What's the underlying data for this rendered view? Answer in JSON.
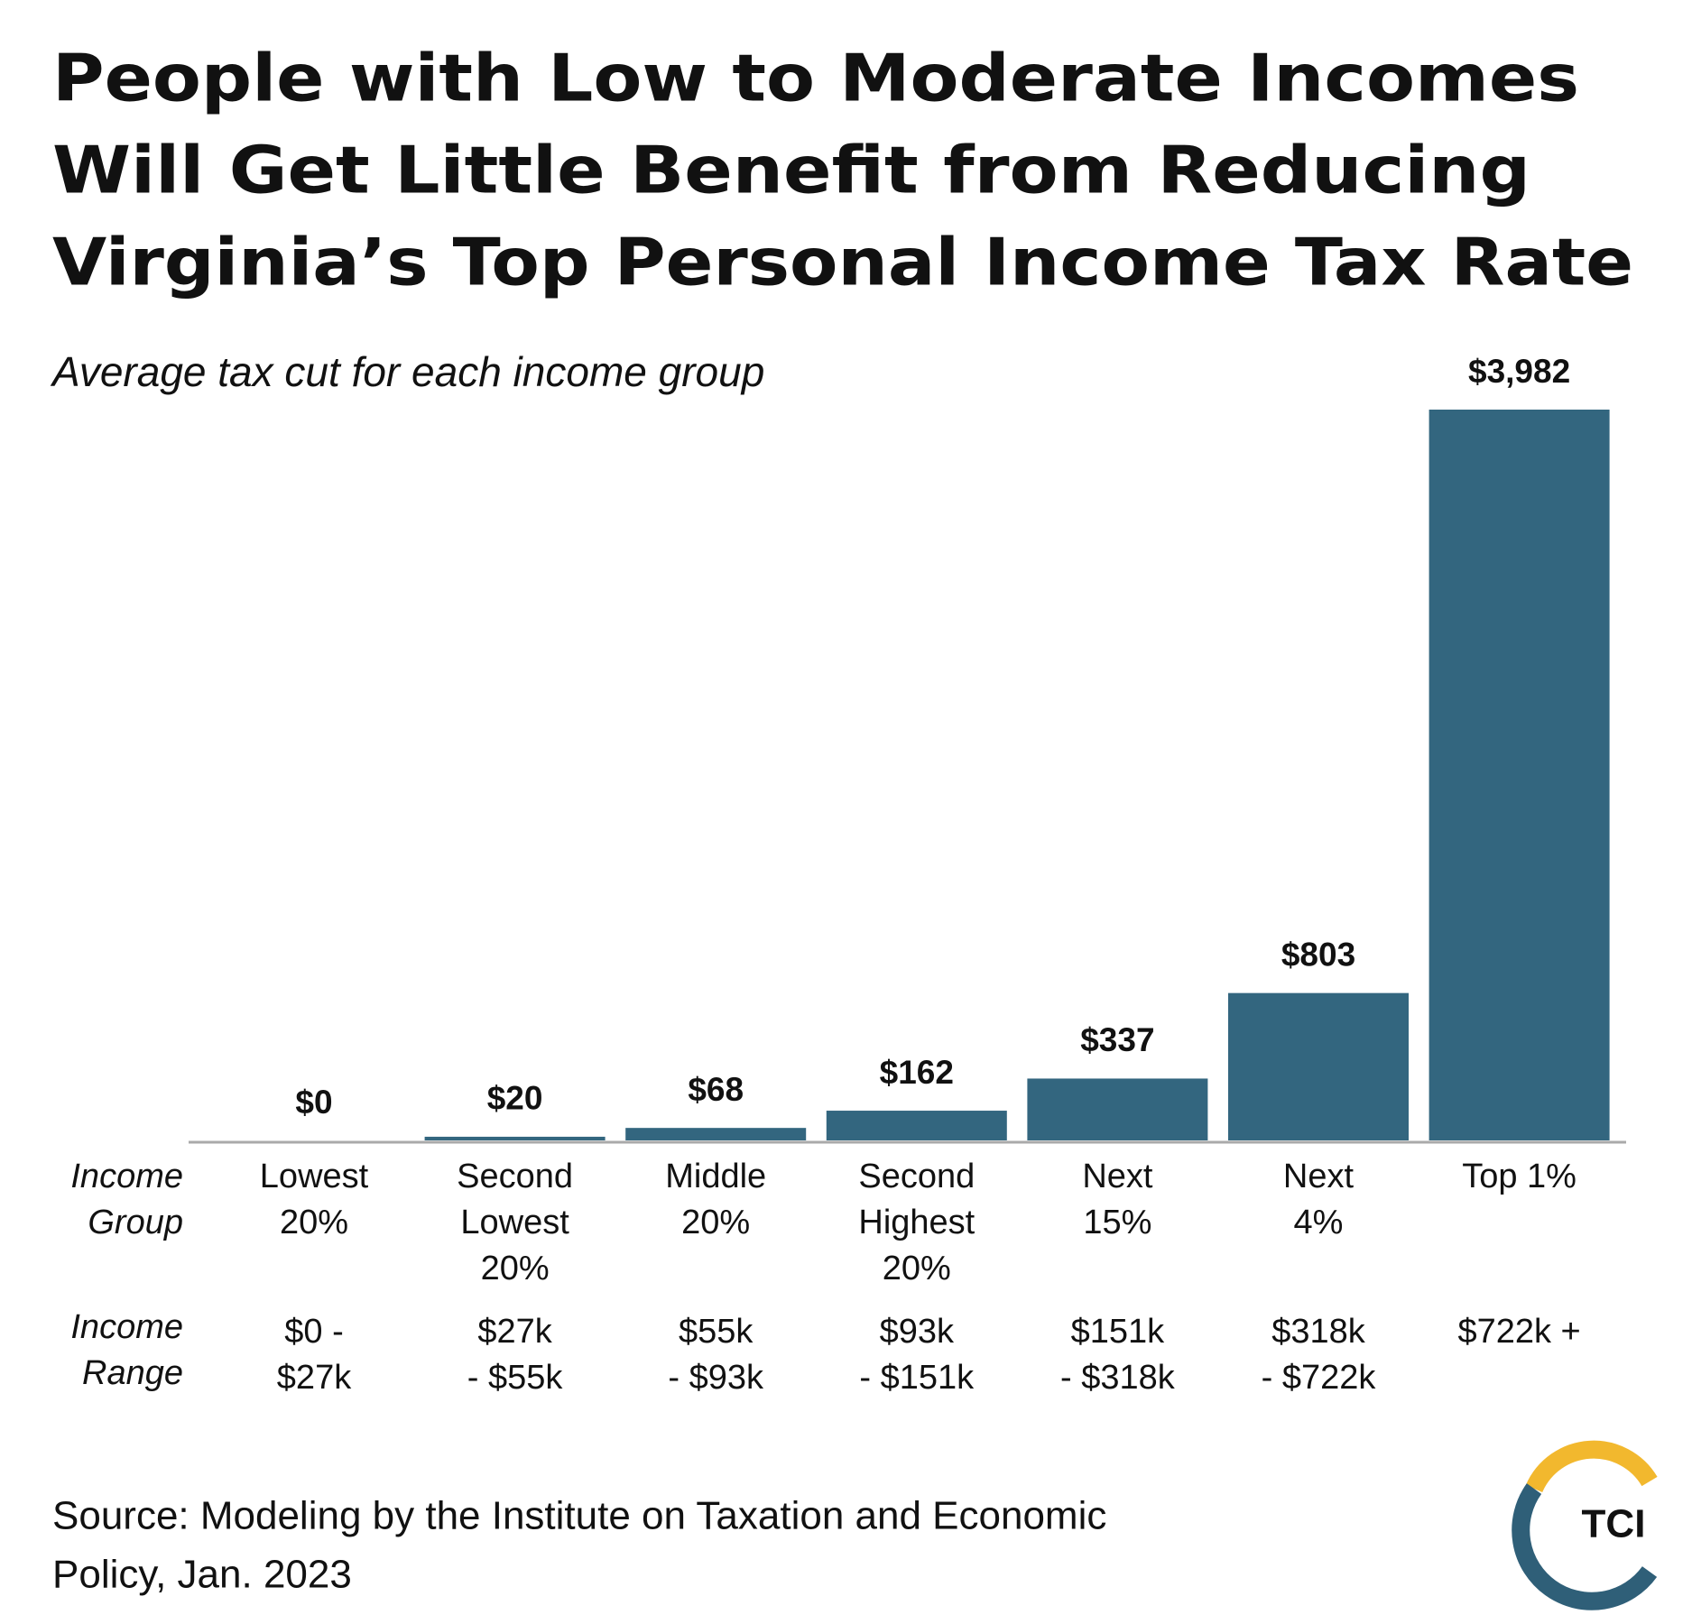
{
  "chart_data": {
    "type": "bar",
    "title": [
      "People with Low to Moderate Incomes",
      "Will Get Little Benefit from Reducing",
      "Virginia’s Top Personal Income Tax Rate"
    ],
    "subtitle": "Average tax cut for each income group",
    "row_labels": [
      [
        "Income",
        "Group"
      ],
      [
        "Income",
        "Range"
      ]
    ],
    "categories": [
      [
        "Lowest",
        "20%"
      ],
      [
        "Second",
        "Lowest",
        "20%"
      ],
      [
        "Middle",
        "20%"
      ],
      [
        "Second",
        "Highest",
        "20%"
      ],
      [
        "Next",
        "15%"
      ],
      [
        "Next",
        "4%"
      ],
      [
        "Top 1%"
      ]
    ],
    "income_ranges": [
      [
        "$0 -",
        "$27k"
      ],
      [
        "$27k",
        "- $55k"
      ],
      [
        "$55k",
        "- $93k"
      ],
      [
        "$93k",
        "- $151k"
      ],
      [
        "$151k",
        "- $318k"
      ],
      [
        "$318k",
        "- $722k"
      ],
      [
        "$722k +"
      ]
    ],
    "values": [
      0,
      20,
      68,
      162,
      337,
      803,
      3982
    ],
    "value_labels": [
      "$0",
      "$20",
      "$68",
      "$162",
      "$337",
      "$803",
      "$3,982"
    ],
    "color": "#33667f",
    "source": [
      "Source: Modeling by the Institute on Taxation and Economic",
      "Policy, Jan. 2023"
    ],
    "logo": "TCI"
  }
}
